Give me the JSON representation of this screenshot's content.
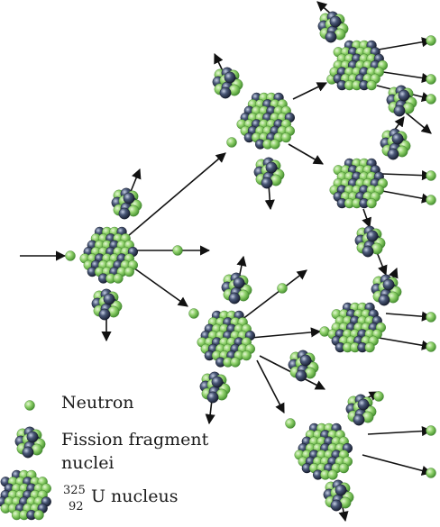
{
  "legend": {
    "neutron": "Neutron",
    "fragment_line1": "Fission fragment",
    "fragment_line2": "nuclei",
    "nucleus_mass": "325",
    "nucleus_atomic": "92",
    "nucleus_label": "U nucleus"
  },
  "colors": {
    "proton_green": "#8fd16a",
    "neutron_navy": "#2b3550",
    "arrow": "#111111"
  },
  "icons": [
    "neutron-icon",
    "fragment-icon",
    "uranium-nucleus-icon",
    "arrow-icon"
  ]
}
